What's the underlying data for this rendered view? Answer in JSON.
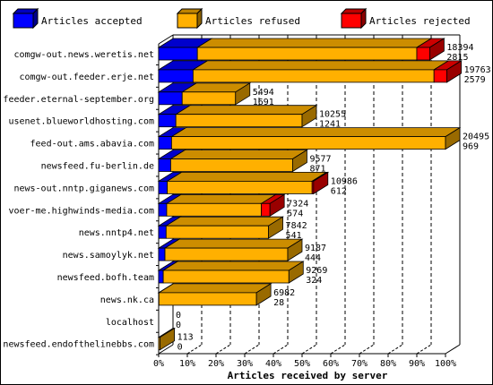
{
  "chart_data": {
    "type": "bar",
    "orientation": "horizontal",
    "stacked": true,
    "style": "3d",
    "xlabel": "Articles received by server",
    "ylabel": "",
    "title": "",
    "xlim": [
      0,
      100
    ],
    "xunit": "percent",
    "xticks": [
      "0%",
      "10%",
      "20%",
      "30%",
      "40%",
      "50%",
      "60%",
      "70%",
      "80%",
      "90%",
      "100%"
    ],
    "legend_position": "top",
    "series": [
      {
        "name": "Articles accepted",
        "color": "#0000ff"
      },
      {
        "name": "Articles refused",
        "color": "#ffb000"
      },
      {
        "name": "Articles rejected",
        "color": "#ff0000"
      }
    ],
    "categories": [
      "comgw-out.news.weretis.net",
      "comgw-out.feeder.erje.net",
      "feeder.eternal-september.org",
      "usenet.blueworldhosting.com",
      "feed-out.ams.abavia.com",
      "newsfeed.fu-berlin.de",
      "news-out.nntp.giganews.com",
      "voer-me.highwinds-media.com",
      "news.nntp4.net",
      "news.samoylyk.net",
      "newsfeed.bofh.team",
      "news.nk.ca",
      "localhost",
      "newsfeed.endofthelinebbs.com"
    ],
    "bars": [
      {
        "accepted_pct": 13.5,
        "refused_pct": 76.5,
        "rejected_pct": 4.5,
        "label_top": "18394",
        "label_bottom": "2815"
      },
      {
        "accepted_pct": 12.0,
        "refused_pct": 84.0,
        "rejected_pct": 4.5,
        "label_top": "19763",
        "label_bottom": "2579"
      },
      {
        "accepted_pct": 8.2,
        "refused_pct": 18.6,
        "rejected_pct": 0,
        "label_top": "5494",
        "label_bottom": "1691"
      },
      {
        "accepted_pct": 6.0,
        "refused_pct": 44.0,
        "rejected_pct": 0,
        "label_top": "10255",
        "label_bottom": "1241"
      },
      {
        "accepted_pct": 4.5,
        "refused_pct": 95.5,
        "rejected_pct": 0,
        "label_top": "20495",
        "label_bottom": "969"
      },
      {
        "accepted_pct": 4.2,
        "refused_pct": 42.5,
        "rejected_pct": 0,
        "label_top": "9577",
        "label_bottom": "871"
      },
      {
        "accepted_pct": 3.0,
        "refused_pct": 50.5,
        "rejected_pct": 0.5,
        "label_top": "10986",
        "label_bottom": "612"
      },
      {
        "accepted_pct": 2.8,
        "refused_pct": 33.0,
        "rejected_pct": 3.0,
        "label_top": "7324",
        "label_bottom": "574"
      },
      {
        "accepted_pct": 2.6,
        "refused_pct": 35.7,
        "rejected_pct": 0,
        "label_top": "7842",
        "label_bottom": "541"
      },
      {
        "accepted_pct": 2.2,
        "refused_pct": 42.8,
        "rejected_pct": 0,
        "label_top": "9187",
        "label_bottom": "444"
      },
      {
        "accepted_pct": 1.6,
        "refused_pct": 43.8,
        "rejected_pct": 0,
        "label_top": "9269",
        "label_bottom": "324"
      },
      {
        "accepted_pct": 0.1,
        "refused_pct": 34.0,
        "rejected_pct": 0,
        "label_top": "6982",
        "label_bottom": "28"
      },
      {
        "accepted_pct": 0,
        "refused_pct": 0,
        "rejected_pct": 0,
        "label_top": "0",
        "label_bottom": "0"
      },
      {
        "accepted_pct": 0,
        "refused_pct": 0.5,
        "rejected_pct": 0,
        "label_top": "113",
        "label_bottom": "0"
      }
    ]
  }
}
